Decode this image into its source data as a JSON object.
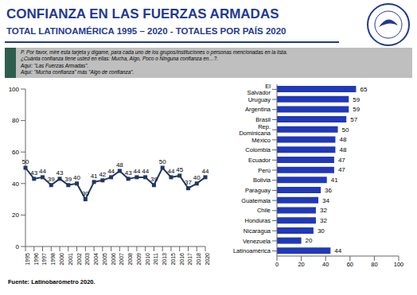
{
  "title": "CONFIANZA EN LAS FUERZAS ARMADAS",
  "subtitle": "TOTAL LATINOAMÉRICA 1995 – 2020 - TOTALES POR PAÍS 2020",
  "question": [
    "P. Por favor, mire esta tarjeta y dígame, para cada uno de los grupos/instituciones o personas mencionadas en la lista.",
    "¿Cuánta confianza tiene usted en ellas: Mucha, Algo, Poco o Ninguna confianza en…?.",
    "Aquí: \"Las Fuerzas Armadas\".",
    "Aquí: \"Mucha confianza\" más \"Algo de confianza\"."
  ],
  "source": "Fuente: Latinobarómetro 2020.",
  "chart_data": [
    {
      "type": "line",
      "categories": [
        "1995",
        "1996",
        "1997",
        "1998",
        "2000",
        "2001",
        "2002",
        "2003",
        "2004",
        "2005",
        "2006",
        "2007",
        "2008",
        "2009",
        "2010",
        "2011",
        "2013",
        "2015",
        "2016",
        "2017",
        "2018",
        "2020"
      ],
      "values": [
        50,
        43,
        44,
        39,
        43,
        39,
        40,
        30,
        41,
        42,
        44,
        48,
        43,
        44,
        44,
        39,
        50,
        44,
        45,
        37,
        40,
        44
      ],
      "color": "#1f3864",
      "marker": "square",
      "ylim": [
        0,
        100
      ],
      "yticks": [
        0,
        20,
        40,
        60,
        80,
        100
      ],
      "grid": false,
      "data_labels": true
    },
    {
      "type": "bar",
      "orientation": "horizontal",
      "categories": [
        "El Salvador",
        "Uruguay",
        "Argentina",
        "Brasil",
        "Rep. Dominicana",
        "México",
        "Colombia",
        "Ecuador",
        "Perú",
        "Bolivia",
        "Paraguay",
        "Guatemala",
        "Chile",
        "Honduras",
        "Nicaragua",
        "Venezuela",
        "Latinoamérica"
      ],
      "values": [
        65,
        59,
        59,
        57,
        50,
        48,
        48,
        47,
        47,
        41,
        36,
        34,
        32,
        32,
        30,
        20,
        44
      ],
      "color": "#2139b8",
      "xlim": [
        0,
        100
      ],
      "xticks": [
        0,
        20,
        40,
        60,
        80,
        100
      ],
      "grid": false,
      "data_labels": true
    }
  ]
}
